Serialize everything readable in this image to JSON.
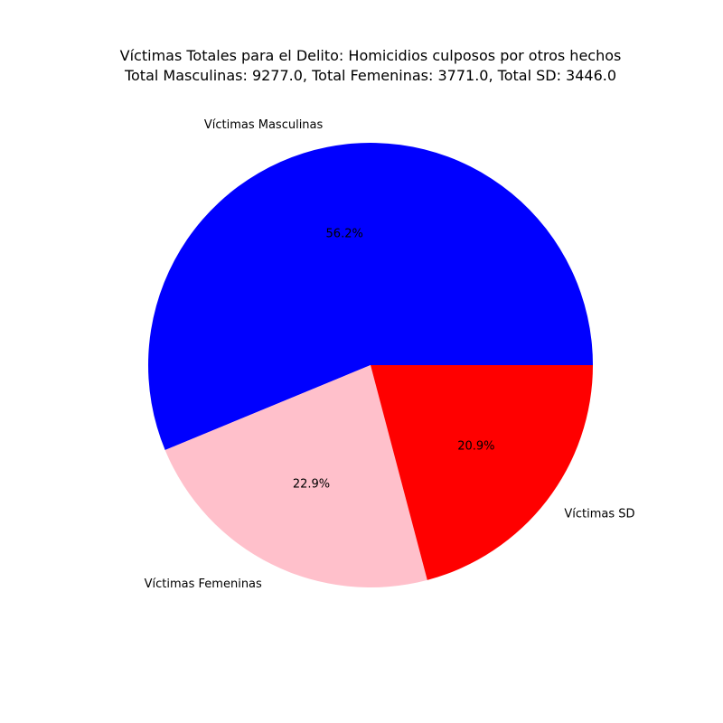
{
  "chart_data": {
    "type": "pie",
    "title_line1": "Víctimas Totales para el Delito: Homicidios culposos por otros hechos",
    "title_line2": "Total Masculinas: 9277.0, Total Femeninas: 3771.0, Total SD: 3446.0",
    "slices": [
      {
        "label": "Víctimas Masculinas",
        "value": 9277.0,
        "percent_label": "56.2%",
        "color": "#0000ff"
      },
      {
        "label": "Víctimas Femeninas",
        "value": 3771.0,
        "percent_label": "22.9%",
        "color": "#ffc0cb"
      },
      {
        "label": "Víctimas SD",
        "value": 3446.0,
        "percent_label": "20.9%",
        "color": "#ff0000"
      }
    ],
    "start_angle_deg": 0,
    "direction": "counterclockwise"
  }
}
